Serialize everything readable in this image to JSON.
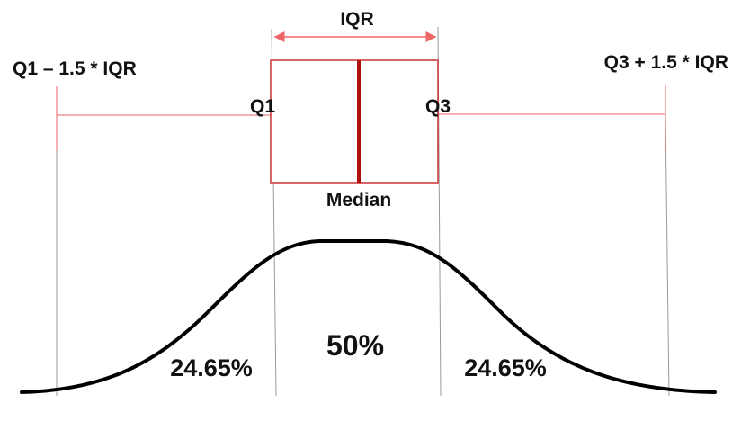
{
  "labels": {
    "iqr": "IQR",
    "lower_fence": "Q1 – 1.5 * IQR",
    "upper_fence": "Q3 + 1.5 * IQR",
    "q1": "Q1",
    "q3": "Q3",
    "median": "Median",
    "left_tail_pct": "24.65%",
    "center_pct": "50%",
    "right_tail_pct": "24.65%"
  },
  "colors": {
    "box_outline": "#cc3333",
    "median_line": "#b01010",
    "whiskers": "#ee6666",
    "iqr_arrow": "#ee6666",
    "guides": "#999999",
    "curve": "#000000",
    "text": "#111111"
  }
}
